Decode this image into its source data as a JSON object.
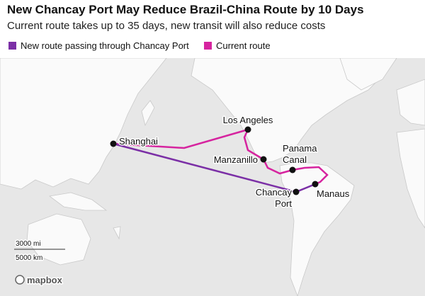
{
  "header": {
    "title": "New Chancay Port May Reduce Brazil-China Route by 10 Days",
    "subtitle": "Current route takes up to 35 days, new transit will also reduce costs"
  },
  "legend": [
    {
      "label": "New route passing through Chancay Port",
      "color": "#7b2fa6"
    },
    {
      "label": "Current route",
      "color": "#d6249f"
    }
  ],
  "places": [
    {
      "label": "Shanghai"
    },
    {
      "label": "Los Angeles"
    },
    {
      "label": "Manzanillo"
    },
    {
      "label": "Panama Canal"
    },
    {
      "label": "Chancay Port"
    },
    {
      "label": "Manaus"
    }
  ],
  "scale": {
    "miles": "3000 mi",
    "km": "5000 km"
  },
  "attribution": "mapbox"
}
